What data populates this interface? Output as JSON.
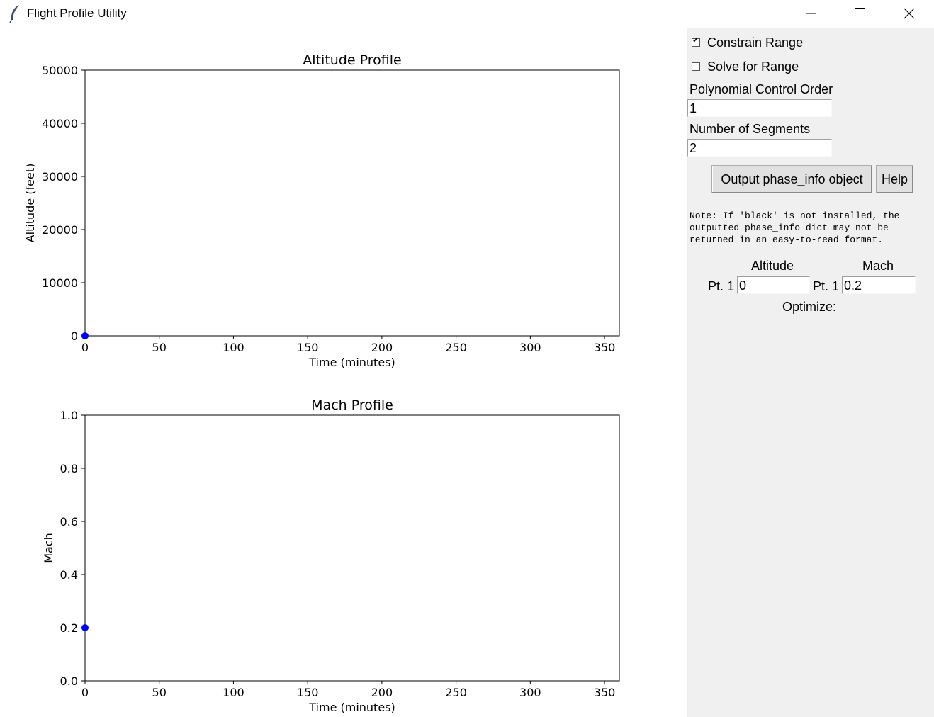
{
  "window": {
    "title": "Flight Profile Utility",
    "controls": [
      "minimize",
      "maximize",
      "close"
    ]
  },
  "panel": {
    "constrain_range": {
      "label": "Constrain Range",
      "checked": true
    },
    "solve_for_range": {
      "label": "Solve for Range",
      "checked": false
    },
    "poly_order": {
      "label": "Polynomial Control Order",
      "value": "1"
    },
    "num_segments": {
      "label": "Number of Segments",
      "value": "2"
    },
    "output_button": "Output phase_info object",
    "help_button": "Help",
    "note": "Note: If 'black' is not installed, the\noutputted phase_info dict may not be\nreturned in an easy-to-read format.",
    "altitude_header": "Altitude",
    "mach_header": "Mach",
    "alt_point_label": "Pt. 1",
    "alt_point_value": "0",
    "mach_point_label": "Pt. 1",
    "mach_point_value": "0.2",
    "optimize_label": "Optimize:"
  },
  "chart_data": [
    {
      "type": "scatter",
      "title": "Altitude Profile",
      "xlabel": "Time (minutes)",
      "ylabel": "Altitude (feet)",
      "xlim": [
        0,
        360
      ],
      "ylim": [
        0,
        50000
      ],
      "xticks": [
        0,
        50,
        100,
        150,
        200,
        250,
        300,
        350
      ],
      "yticks": [
        0,
        10000,
        20000,
        30000,
        40000,
        50000
      ],
      "series": [
        {
          "x": [
            0
          ],
          "y": [
            0
          ],
          "color": "#0000ff"
        }
      ]
    },
    {
      "type": "scatter",
      "title": "Mach Profile",
      "xlabel": "Time (minutes)",
      "ylabel": "Mach",
      "xlim": [
        0,
        360
      ],
      "ylim": [
        0,
        1.0
      ],
      "xticks": [
        0,
        50,
        100,
        150,
        200,
        250,
        300,
        350
      ],
      "yticks": [
        "0.0",
        "0.2",
        "0.4",
        "0.6",
        "0.8",
        "1.0"
      ],
      "series": [
        {
          "x": [
            0
          ],
          "y": [
            0.2
          ],
          "color": "#0000ff"
        }
      ]
    }
  ]
}
